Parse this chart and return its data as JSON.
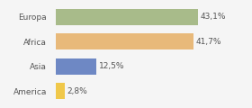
{
  "categories": [
    "Europa",
    "Africa",
    "Asia",
    "America"
  ],
  "values": [
    43.1,
    41.7,
    12.5,
    2.8
  ],
  "labels": [
    "43,1%",
    "41,7%",
    "12,5%",
    "2,8%"
  ],
  "bar_colors": [
    "#a8bb8a",
    "#e8b97a",
    "#6e88c4",
    "#f0c84a"
  ],
  "background_color": "#f5f5f5",
  "xlim": [
    0,
    58
  ],
  "bar_height": 0.65,
  "label_fontsize": 6.5,
  "category_fontsize": 6.5,
  "text_color": "#555555"
}
